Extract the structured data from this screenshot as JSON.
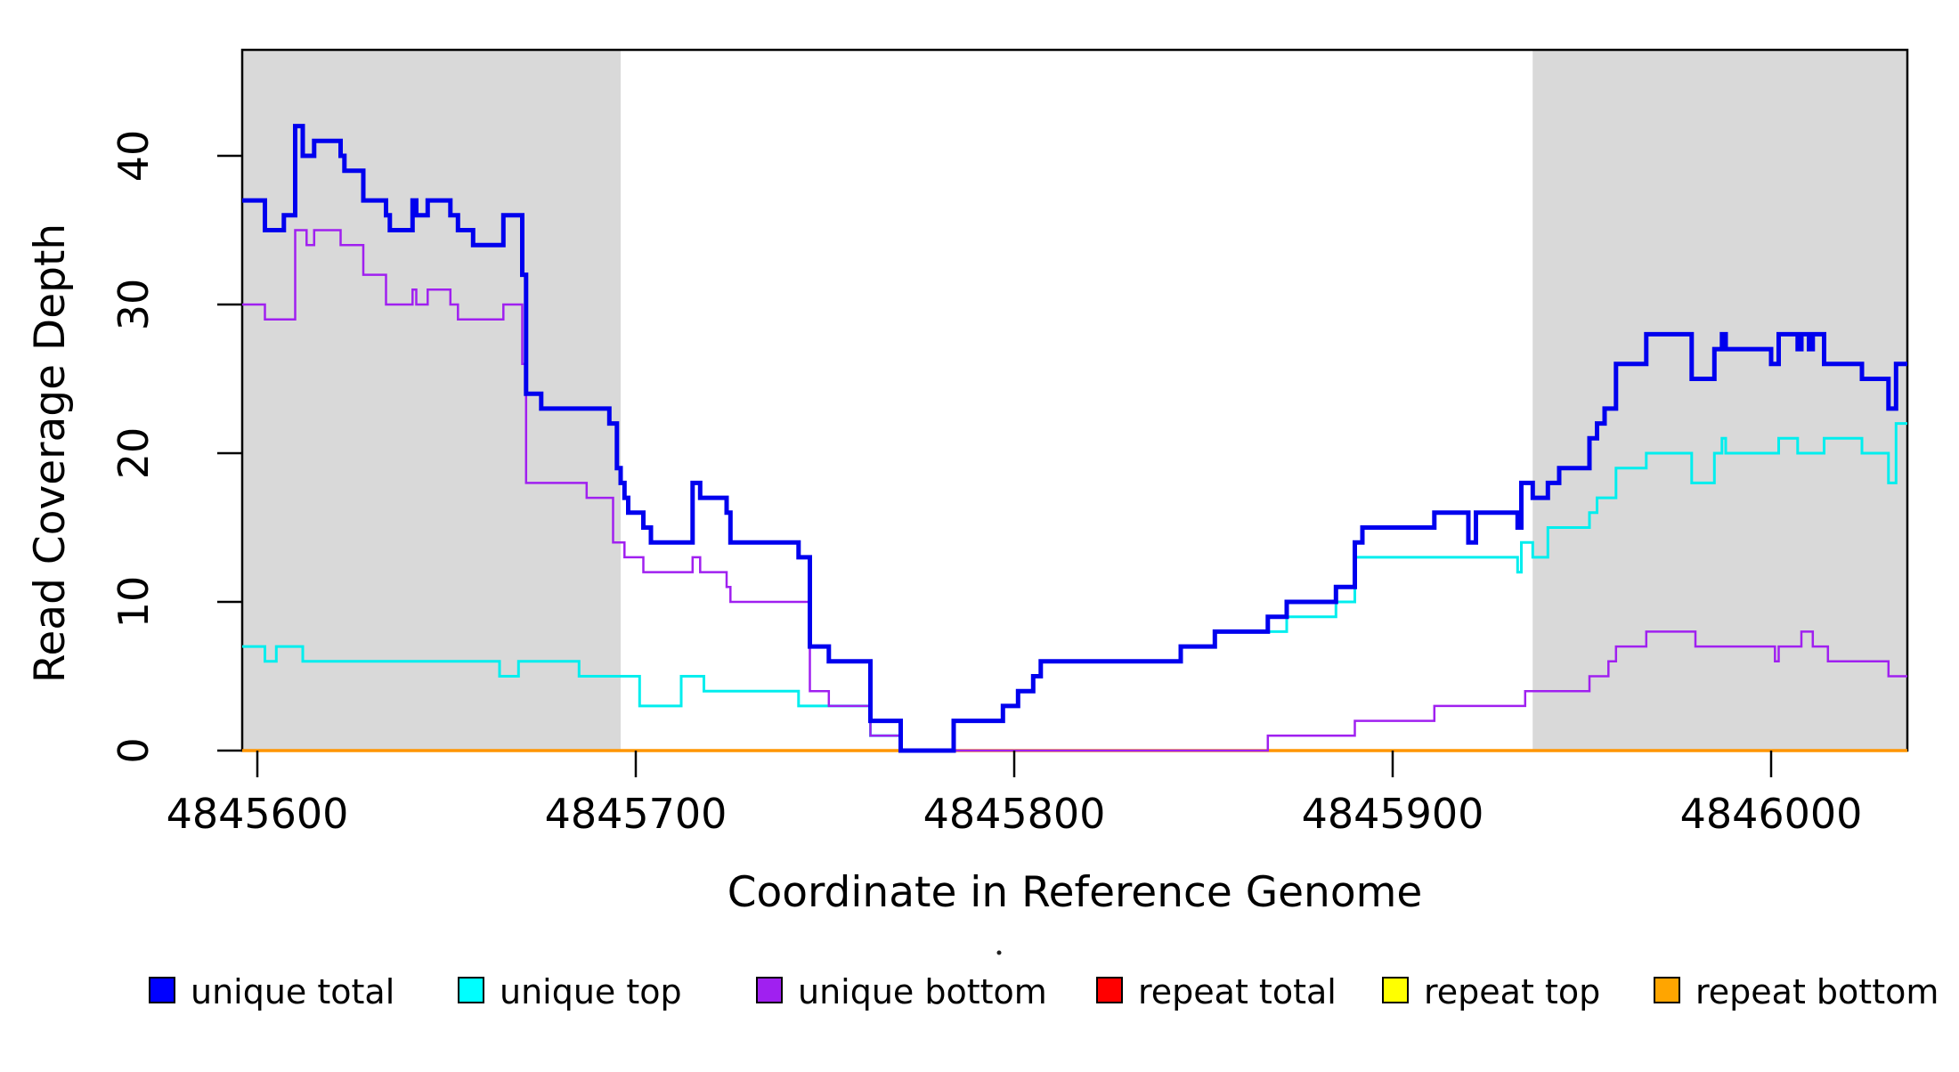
{
  "chart_data": {
    "type": "line",
    "subtype": "step-coverage",
    "title": "",
    "xlabel": "Coordinate in Reference Genome",
    "ylabel": "Read Coverage Depth",
    "xlim": [
      4845596,
      4846036
    ],
    "ylim": [
      0,
      47
    ],
    "x_ticks": [
      4845600,
      4845700,
      4845800,
      4845900,
      4846000
    ],
    "y_ticks": [
      0,
      10,
      20,
      30,
      40
    ],
    "grid": false,
    "legend_position": "bottom",
    "shade_color": "#d9d9d9",
    "shaded_regions": [
      {
        "name": "left-repeat-region",
        "from": 4845596,
        "to": 4845696
      },
      {
        "name": "right-repeat-region",
        "from": 4845937,
        "to": 4846036
      }
    ],
    "series": [
      {
        "name": "unique total",
        "color": "#0000ee",
        "lwd": 5,
        "steps": [
          [
            4845596,
            37
          ],
          [
            4845602,
            35
          ],
          [
            4845607,
            36
          ],
          [
            4845610,
            42
          ],
          [
            4845612,
            40
          ],
          [
            4845615,
            41
          ],
          [
            4845622,
            40
          ],
          [
            4845623,
            39
          ],
          [
            4845628,
            37
          ],
          [
            4845634,
            36
          ],
          [
            4845635,
            35
          ],
          [
            4845641,
            37
          ],
          [
            4845642,
            36
          ],
          [
            4845645,
            37
          ],
          [
            4845651,
            36
          ],
          [
            4845653,
            35
          ],
          [
            4845657,
            34
          ],
          [
            4845665,
            36
          ],
          [
            4845670,
            32
          ],
          [
            4845671,
            24
          ],
          [
            4845675,
            23
          ],
          [
            4845693,
            22
          ],
          [
            4845695,
            19
          ],
          [
            4845696,
            18
          ],
          [
            4845697,
            17
          ],
          [
            4845698,
            16
          ],
          [
            4845702,
            15
          ],
          [
            4845704,
            14
          ],
          [
            4845715,
            18
          ],
          [
            4845717,
            17
          ],
          [
            4845724,
            16
          ],
          [
            4845725,
            14
          ],
          [
            4845743,
            13
          ],
          [
            4845746,
            7
          ],
          [
            4845751,
            6
          ],
          [
            4845762,
            2
          ],
          [
            4845770,
            0
          ],
          [
            4845784,
            2
          ],
          [
            4845797,
            3
          ],
          [
            4845801,
            4
          ],
          [
            4845805,
            5
          ],
          [
            4845807,
            6
          ],
          [
            4845844,
            7
          ],
          [
            4845853,
            8
          ],
          [
            4845867,
            9
          ],
          [
            4845872,
            10
          ],
          [
            4845885,
            11
          ],
          [
            4845890,
            14
          ],
          [
            4845892,
            15
          ],
          [
            4845911,
            16
          ],
          [
            4845920,
            14
          ],
          [
            4845922,
            16
          ],
          [
            4845933,
            15
          ],
          [
            4845934,
            18
          ],
          [
            4845937,
            17
          ],
          [
            4845941,
            18
          ],
          [
            4845944,
            19
          ],
          [
            4845952,
            21
          ],
          [
            4845954,
            22
          ],
          [
            4845956,
            23
          ],
          [
            4845959,
            26
          ],
          [
            4845967,
            28
          ],
          [
            4845979,
            25
          ],
          [
            4845985,
            27
          ],
          [
            4845987,
            28
          ],
          [
            4845988,
            27
          ],
          [
            4846000,
            26
          ],
          [
            4846002,
            28
          ],
          [
            4846007,
            27
          ],
          [
            4846008,
            28
          ],
          [
            4846010,
            27
          ],
          [
            4846011,
            28
          ],
          [
            4846014,
            26
          ],
          [
            4846024,
            25
          ],
          [
            4846031,
            23
          ],
          [
            4846033,
            26
          ]
        ]
      },
      {
        "name": "unique top",
        "color": "#00eeee",
        "lwd": 3,
        "steps": [
          [
            4845596,
            7
          ],
          [
            4845602,
            6
          ],
          [
            4845605,
            7
          ],
          [
            4845612,
            6
          ],
          [
            4845664,
            5
          ],
          [
            4845669,
            6
          ],
          [
            4845685,
            5
          ],
          [
            4845701,
            3
          ],
          [
            4845712,
            5
          ],
          [
            4845718,
            4
          ],
          [
            4845743,
            3
          ],
          [
            4845762,
            1
          ],
          [
            4845770,
            0
          ],
          [
            4845784,
            2
          ],
          [
            4845797,
            3
          ],
          [
            4845801,
            4
          ],
          [
            4845805,
            5
          ],
          [
            4845807,
            6
          ],
          [
            4845844,
            7
          ],
          [
            4845853,
            8
          ],
          [
            4845872,
            9
          ],
          [
            4845885,
            10
          ],
          [
            4845890,
            13
          ],
          [
            4845933,
            12
          ],
          [
            4845934,
            14
          ],
          [
            4845937,
            13
          ],
          [
            4845941,
            15
          ],
          [
            4845952,
            16
          ],
          [
            4845954,
            17
          ],
          [
            4845959,
            19
          ],
          [
            4845967,
            20
          ],
          [
            4845979,
            18
          ],
          [
            4845985,
            20
          ],
          [
            4845987,
            21
          ],
          [
            4845988,
            20
          ],
          [
            4846002,
            21
          ],
          [
            4846007,
            20
          ],
          [
            4846014,
            21
          ],
          [
            4846024,
            20
          ],
          [
            4846031,
            18
          ],
          [
            4846033,
            22
          ]
        ]
      },
      {
        "name": "unique bottom",
        "color": "#a020f0",
        "lwd": 2.5,
        "steps": [
          [
            4845596,
            30
          ],
          [
            4845602,
            29
          ],
          [
            4845610,
            35
          ],
          [
            4845613,
            34
          ],
          [
            4845615,
            35
          ],
          [
            4845622,
            34
          ],
          [
            4845628,
            32
          ],
          [
            4845634,
            30
          ],
          [
            4845641,
            31
          ],
          [
            4845642,
            30
          ],
          [
            4845645,
            31
          ],
          [
            4845651,
            30
          ],
          [
            4845653,
            29
          ],
          [
            4845665,
            30
          ],
          [
            4845670,
            26
          ],
          [
            4845671,
            18
          ],
          [
            4845687,
            17
          ],
          [
            4845694,
            14
          ],
          [
            4845697,
            13
          ],
          [
            4845702,
            12
          ],
          [
            4845715,
            13
          ],
          [
            4845717,
            12
          ],
          [
            4845724,
            11
          ],
          [
            4845725,
            10
          ],
          [
            4845746,
            4
          ],
          [
            4845751,
            3
          ],
          [
            4845762,
            1
          ],
          [
            4845770,
            0
          ],
          [
            4845867,
            1
          ],
          [
            4845890,
            2
          ],
          [
            4845911,
            3
          ],
          [
            4845935,
            4
          ],
          [
            4845952,
            5
          ],
          [
            4845957,
            6
          ],
          [
            4845959,
            7
          ],
          [
            4845967,
            8
          ],
          [
            4845980,
            7
          ],
          [
            4846001,
            6
          ],
          [
            4846002,
            7
          ],
          [
            4846008,
            8
          ],
          [
            4846011,
            7
          ],
          [
            4846015,
            6
          ],
          [
            4846031,
            5
          ]
        ]
      },
      {
        "name": "repeat total",
        "color": "#ff0000",
        "lwd": 2.5,
        "steps": [
          [
            4845596,
            0
          ]
        ]
      },
      {
        "name": "repeat top",
        "color": "#ffff00",
        "lwd": 2.5,
        "steps": [
          [
            4845596,
            0
          ]
        ]
      },
      {
        "name": "repeat bottom",
        "color": "#ff9500",
        "lwd": 3.5,
        "steps": [
          [
            4845596,
            0
          ]
        ]
      }
    ]
  },
  "legend": {
    "items": [
      {
        "label": "unique total",
        "color": "#0000ff"
      },
      {
        "label": "unique top",
        "color": "#00ffff"
      },
      {
        "label": "unique bottom",
        "color": "#a020f0"
      },
      {
        "label": "repeat total",
        "color": "#ff0000"
      },
      {
        "label": "repeat top",
        "color": "#ffff00"
      },
      {
        "label": "repeat bottom",
        "color": "#ffa500"
      }
    ],
    "stray_dot": true
  }
}
